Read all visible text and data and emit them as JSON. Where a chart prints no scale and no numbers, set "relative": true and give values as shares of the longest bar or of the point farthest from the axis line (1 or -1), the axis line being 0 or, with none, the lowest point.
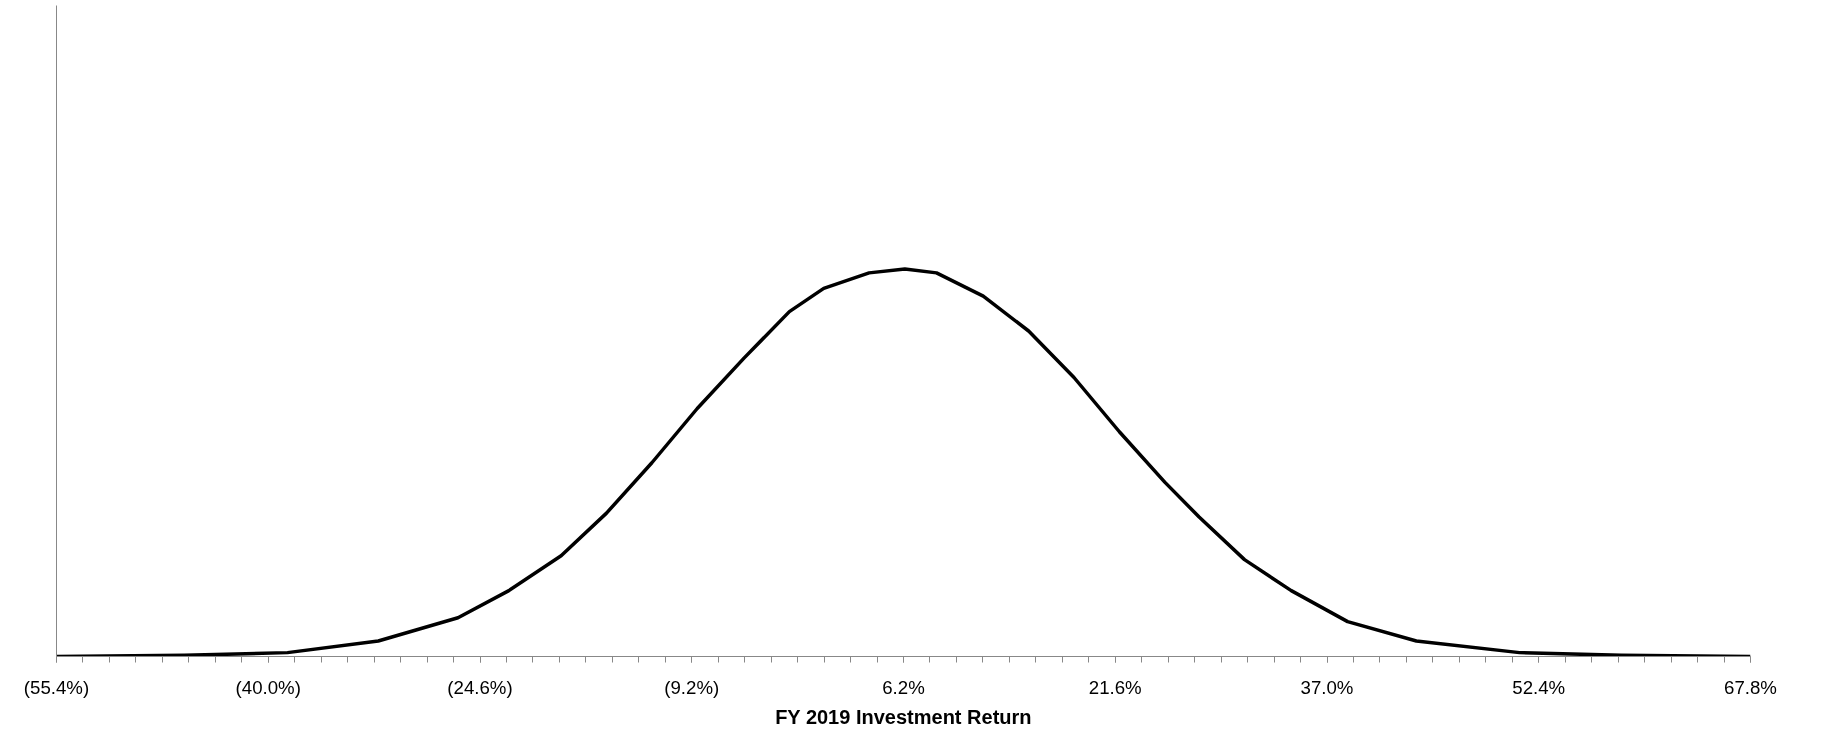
{
  "chart_data": {
    "type": "line",
    "xlabel": "FY 2019 Investment Return",
    "relative": true,
    "color": "#000000",
    "xlim": [
      -55.4,
      67.8
    ],
    "xticks": [
      {
        "value": -55.4,
        "label": "(55.4%)"
      },
      {
        "value": -40.0,
        "label": "(40.0%)"
      },
      {
        "value": -24.6,
        "label": "(24.6%)"
      },
      {
        "value": -9.2,
        "label": "(9.2%)"
      },
      {
        "value": 6.2,
        "label": "6.2%"
      },
      {
        "value": 21.6,
        "label": "21.6%"
      },
      {
        "value": 37.0,
        "label": "37.0%"
      },
      {
        "value": 52.4,
        "label": "52.4%"
      },
      {
        "value": 67.8,
        "label": "67.8%"
      }
    ],
    "x": [
      -55.4,
      -46.1,
      -38.6,
      -32.0,
      -26.2,
      -22.5,
      -18.7,
      -15.4,
      -12.1,
      -8.8,
      -5.4,
      -2.1,
      0.4,
      3.7,
      6.3,
      8.6,
      12.0,
      15.3,
      18.6,
      21.9,
      25.2,
      27.7,
      31.0,
      34.4,
      38.5,
      43.5,
      51.0,
      58.4,
      67.8
    ],
    "values": [
      0,
      0.003,
      0.01,
      0.04,
      0.1,
      0.17,
      0.26,
      0.37,
      0.5,
      0.64,
      0.77,
      0.89,
      0.95,
      0.99,
      1.0,
      0.99,
      0.93,
      0.84,
      0.72,
      0.58,
      0.45,
      0.36,
      0.25,
      0.17,
      0.09,
      0.04,
      0.01,
      0.003,
      0
    ]
  }
}
